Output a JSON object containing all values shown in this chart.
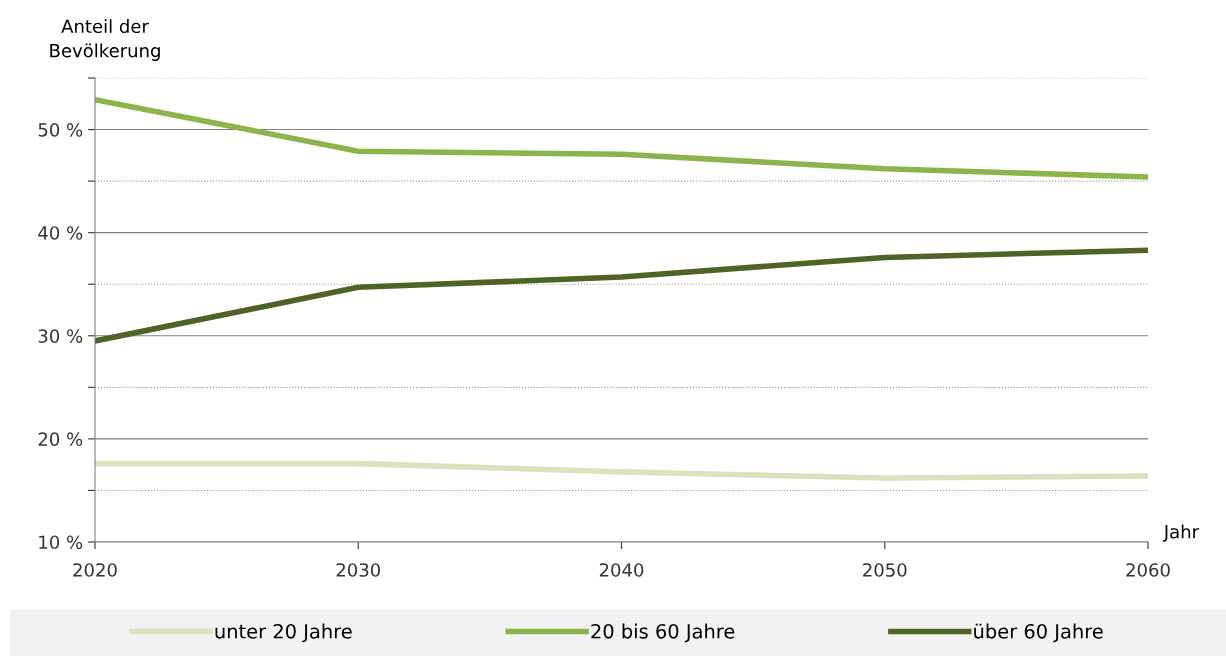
{
  "chart_data": {
    "type": "line",
    "ylabel": "Anteil der\nBevölkerung",
    "xlabel": "Jahr",
    "x": [
      2020,
      2030,
      2040,
      2050,
      2060
    ],
    "xlim": [
      2020,
      2060
    ],
    "xticks": [
      2020,
      2030,
      2040,
      2050,
      2060
    ],
    "ylim": [
      10,
      55
    ],
    "yticks": [
      {
        "value": 10,
        "label": "10 %"
      },
      {
        "value": 15,
        "label": null
      },
      {
        "value": 20,
        "label": "20 %"
      },
      {
        "value": 25,
        "label": null
      },
      {
        "value": 30,
        "label": "30 %"
      },
      {
        "value": 35,
        "label": null
      },
      {
        "value": 40,
        "label": "40 %"
      },
      {
        "value": 45,
        "label": null
      },
      {
        "value": 50,
        "label": "50 %"
      },
      {
        "value": 55,
        "label": null
      }
    ],
    "grid": "y",
    "legend": "bottom",
    "marker": "none",
    "line_style": "solid",
    "series": [
      {
        "name": "unter 20 Jahre",
        "color": "#d7e4bd",
        "values": [
          17.6,
          17.6,
          16.8,
          16.2,
          16.4
        ]
      },
      {
        "name": "20 bis 60 Jahre",
        "color": "#8db44a",
        "values": [
          52.9,
          47.9,
          47.6,
          46.2,
          45.4
        ]
      },
      {
        "name": "über 60 Jahre",
        "color": "#4f6228",
        "values": [
          29.5,
          34.7,
          35.7,
          37.6,
          38.3
        ]
      }
    ]
  }
}
